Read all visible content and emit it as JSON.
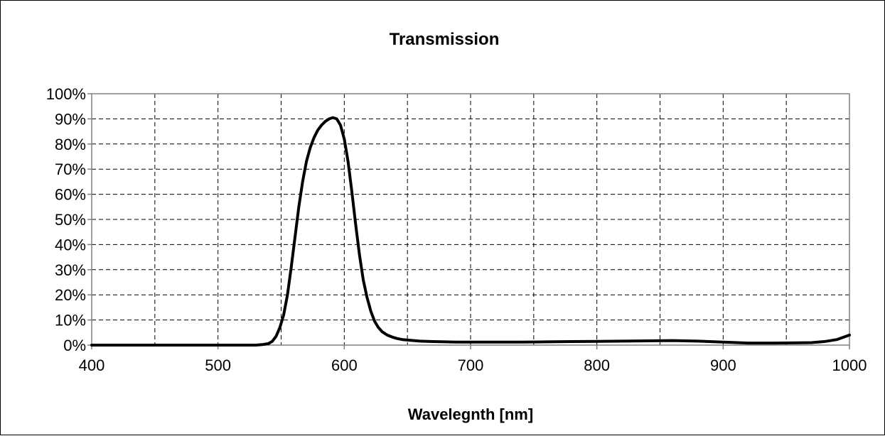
{
  "chart_data": {
    "type": "line",
    "title": "Transmission",
    "xlabel": "Wavelegnth [nm]",
    "ylabel": "",
    "xlim": [
      400,
      1000
    ],
    "ylim": [
      0,
      100
    ],
    "x_ticks": [
      400,
      500,
      600,
      700,
      800,
      900,
      1000
    ],
    "x_tick_labels": [
      "400",
      "500",
      "600",
      "700",
      "800",
      "900",
      "1000"
    ],
    "x_minor_gridlines": [
      450,
      550,
      650,
      750,
      850,
      950
    ],
    "y_ticks": [
      0,
      10,
      20,
      30,
      40,
      50,
      60,
      70,
      80,
      90,
      100
    ],
    "y_tick_labels": [
      "0%",
      "10%",
      "20%",
      "30%",
      "40%",
      "50%",
      "60%",
      "70%",
      "80%",
      "90%",
      "100%"
    ],
    "grid": true,
    "grid_style": "dashed",
    "legend": false,
    "series": [
      {
        "color": "#000000",
        "x": [
          400,
          450,
          500,
          520,
          530,
          535,
          540,
          543,
          546,
          549,
          552,
          555,
          558,
          561,
          564,
          567,
          570,
          573,
          576,
          579,
          582,
          585,
          588,
          591,
          594,
          597,
          600,
          603,
          606,
          609,
          612,
          615,
          618,
          621,
          624,
          627,
          630,
          634,
          638,
          642,
          646,
          650,
          655,
          660,
          670,
          680,
          690,
          700,
          720,
          740,
          760,
          780,
          800,
          820,
          840,
          860,
          880,
          900,
          920,
          940,
          960,
          970,
          980,
          990,
          1000
        ],
        "y": [
          0,
          0,
          0,
          0,
          0,
          0.2,
          0.6,
          1.5,
          3.5,
          7,
          12,
          20,
          31,
          43,
          55,
          65,
          73,
          78.5,
          82.5,
          85.5,
          87.5,
          89,
          90,
          90.5,
          90,
          87.5,
          82,
          73,
          61,
          48,
          36,
          26,
          19,
          13.5,
          9.5,
          7,
          5.3,
          4,
          3.2,
          2.6,
          2.2,
          2.0,
          1.8,
          1.6,
          1.4,
          1.3,
          1.2,
          1.2,
          1.2,
          1.2,
          1.3,
          1.4,
          1.5,
          1.6,
          1.7,
          1.8,
          1.6,
          1.2,
          0.8,
          0.8,
          0.9,
          1.0,
          1.4,
          2.2,
          4.0
        ]
      }
    ]
  }
}
